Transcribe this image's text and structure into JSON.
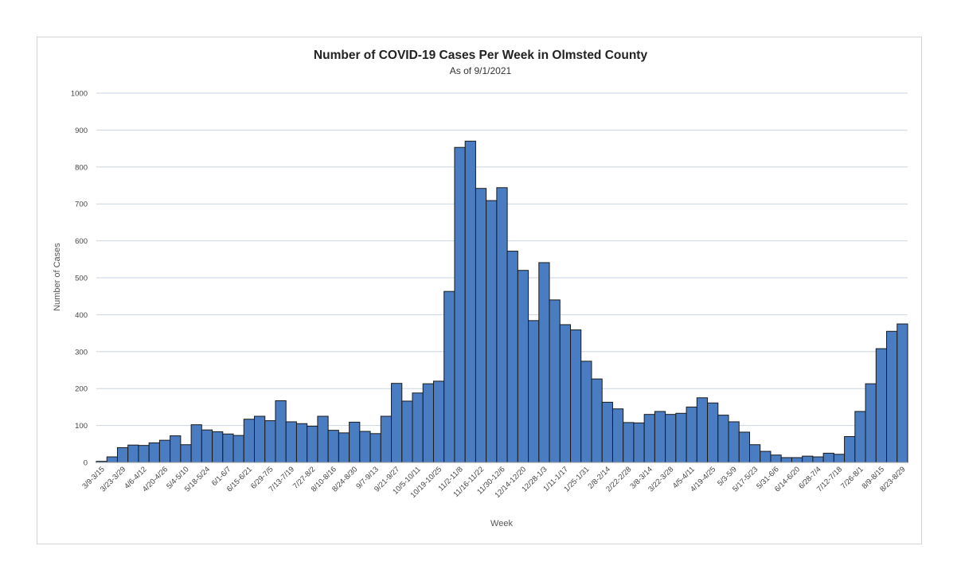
{
  "chart_data": {
    "type": "bar",
    "title": "Number of COVID-19 Cases Per Week in Olmsted County",
    "subtitle": "As of 9/1/2021",
    "xlabel": "Week",
    "ylabel": "Number of Cases",
    "ylim": [
      0,
      1000
    ],
    "yticks": [
      0,
      100,
      200,
      300,
      400,
      500,
      600,
      700,
      800,
      900,
      1000
    ],
    "grid": true,
    "bar_color": "#4a7cc1",
    "bar_edge_color": "#1a1a1a",
    "grid_color": "#c9d6e3",
    "tick_labels": [
      "3/9-3/15",
      "3/23-3/29",
      "4/6-4/12",
      "4/20-4/26",
      "5/4-5/10",
      "5/18-5/24",
      "6/1-6/7",
      "6/15-6/21",
      "6/29-7/5",
      "7/13-7/19",
      "7/27-8/2",
      "8/10-8/16",
      "8/24-8/30",
      "9/7-9/13",
      "9/21-9/27",
      "10/5-10/11",
      "10/19-10/25",
      "11/2-11/8",
      "11/16-11/22",
      "11/30-12/6",
      "12/14-12/20",
      "12/28-1/3",
      "1/11-1/17",
      "1/25-1/31",
      "2/8-2/14",
      "2/22-2/28",
      "3/8-3/14",
      "3/22-3/28",
      "4/5-4/11",
      "4/19-4/25",
      "5/3-5/9",
      "5/17-5/23",
      "5/31-6/6",
      "6/14-6/20",
      "6/28-7/4",
      "7/12-7/18",
      "7/26-8/1",
      "8/9-8/15",
      "8/23-8/29"
    ],
    "values": [
      3,
      15,
      40,
      47,
      46,
      53,
      60,
      72,
      48,
      102,
      88,
      83,
      77,
      73,
      117,
      125,
      113,
      167,
      110,
      105,
      98,
      125,
      87,
      80,
      109,
      84,
      78,
      125,
      214,
      166,
      188,
      213,
      220,
      463,
      853,
      870,
      742,
      709,
      744,
      572,
      520,
      384,
      541,
      440,
      373,
      359,
      274,
      226,
      163,
      145,
      108,
      107,
      130,
      138,
      130,
      133,
      150,
      175,
      161,
      128,
      110,
      82,
      48,
      30,
      20,
      13,
      13,
      17,
      15,
      25,
      22,
      70,
      138,
      213,
      308,
      355,
      375
    ]
  }
}
